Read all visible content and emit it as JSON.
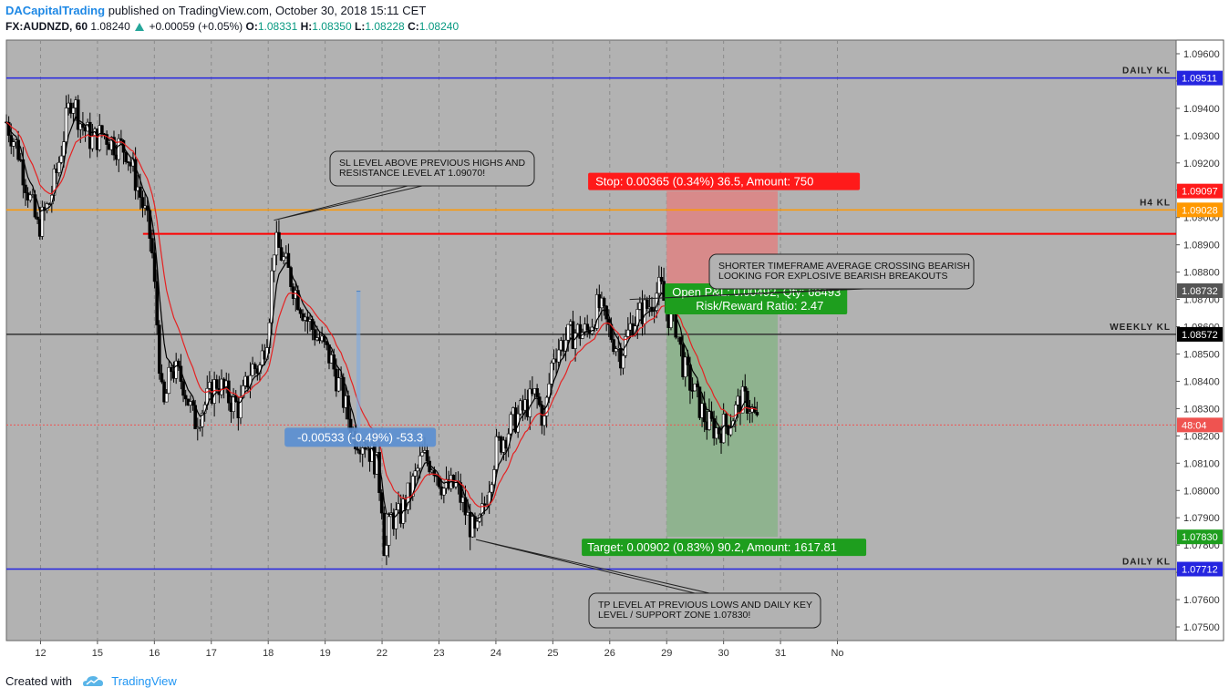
{
  "header": {
    "author": "DACapitalTrading",
    "published": "published on TradingView.com, October 30, 2018 15:11 CET",
    "symbol": "FX:AUDNZD, 60",
    "last": "1.08240",
    "change": "+0.00059 (+0.05%)",
    "o_label": "O:",
    "o": "1.08331",
    "h_label": "H:",
    "h": "1.08350",
    "l_label": "L:",
    "l": "1.08228",
    "c_label": "C:",
    "c": "1.08240"
  },
  "footer": {
    "created": "Created with",
    "brand": "TradingView",
    "logo_icon": "tradingview-cloud-icon"
  },
  "colors": {
    "plot_bg": "#b2b2b2",
    "up_candle": "#ffffff",
    "down_candle": "#000000",
    "ma_fast": "#000000",
    "ma_slow": "#e52222",
    "daily_kl": "#2525e0",
    "h4_kl": "#ff9800",
    "weekly_kl": "#333333",
    "stop_box": "#d88a8a",
    "target_box": "#8fb38f"
  },
  "chart_data": {
    "type": "candlestick",
    "y_axis": {
      "min": 1.0745,
      "max": 1.0965,
      "ticks": [
        "1.07500",
        "1.07600",
        "1.07700",
        "1.07800",
        "1.07900",
        "1.08000",
        "1.08100",
        "1.08200",
        "1.08300",
        "1.08400",
        "1.08500",
        "1.08600",
        "1.08700",
        "1.08800",
        "1.08900",
        "1.09000",
        "1.09100",
        "1.09200",
        "1.09300",
        "1.09400",
        "1.09500",
        "1.09600"
      ]
    },
    "x_axis": {
      "start_day": 11.4,
      "end_day": 31.95,
      "ticks": [
        {
          "label": "12",
          "day": 12
        },
        {
          "label": "15",
          "day": 13
        },
        {
          "label": "16",
          "day": 14
        },
        {
          "label": "17",
          "day": 15
        },
        {
          "label": "18",
          "day": 16
        },
        {
          "label": "19",
          "day": 17
        },
        {
          "label": "22",
          "day": 18
        },
        {
          "label": "23",
          "day": 19
        },
        {
          "label": "24",
          "day": 20
        },
        {
          "label": "25",
          "day": 21
        },
        {
          "label": "26",
          "day": 22
        },
        {
          "label": "29",
          "day": 23
        },
        {
          "label": "30",
          "day": 24
        },
        {
          "label": "31",
          "day": 25
        },
        {
          "label": "No",
          "day": 26
        }
      ]
    },
    "price_path": [
      [
        11.4,
        1.0935
      ],
      [
        11.6,
        1.0925
      ],
      [
        11.75,
        1.0912
      ],
      [
        11.95,
        1.0896
      ],
      [
        12.15,
        1.0905
      ],
      [
        12.3,
        1.0918
      ],
      [
        12.45,
        1.0935
      ],
      [
        12.55,
        1.0945
      ],
      [
        12.7,
        1.0935
      ],
      [
        12.9,
        1.0928
      ],
      [
        13.1,
        1.0931
      ],
      [
        13.3,
        1.0927
      ],
      [
        13.5,
        1.0925
      ],
      [
        13.7,
        1.0912
      ],
      [
        13.85,
        1.09
      ],
      [
        13.95,
        1.089
      ],
      [
        14.05,
        1.086
      ],
      [
        14.15,
        1.0828
      ],
      [
        14.3,
        1.0845
      ],
      [
        14.5,
        1.084
      ],
      [
        14.7,
        1.0825
      ],
      [
        14.9,
        1.0832
      ],
      [
        15.1,
        1.084
      ],
      [
        15.3,
        1.0834
      ],
      [
        15.5,
        1.083
      ],
      [
        15.7,
        1.0845
      ],
      [
        15.85,
        1.0845
      ],
      [
        16.0,
        1.086
      ],
      [
        16.1,
        1.089
      ],
      [
        16.2,
        1.0888
      ],
      [
        16.35,
        1.088
      ],
      [
        16.5,
        1.0872
      ],
      [
        16.7,
        1.0862
      ],
      [
        16.9,
        1.0855
      ],
      [
        17.1,
        1.0848
      ],
      [
        17.3,
        1.0835
      ],
      [
        17.5,
        1.082
      ],
      [
        17.7,
        1.0818
      ],
      [
        17.9,
        1.081
      ],
      [
        18.0,
        1.0795
      ],
      [
        18.05,
        1.0775
      ],
      [
        18.15,
        1.079
      ],
      [
        18.3,
        1.079
      ],
      [
        18.5,
        1.08
      ],
      [
        18.7,
        1.0812
      ],
      [
        18.9,
        1.081
      ],
      [
        19.1,
        1.08
      ],
      [
        19.3,
        1.0802
      ],
      [
        19.5,
        1.079
      ],
      [
        19.65,
        1.0782
      ],
      [
        19.8,
        1.0795
      ],
      [
        20.0,
        1.0815
      ],
      [
        20.15,
        1.082
      ],
      [
        20.3,
        1.0825
      ],
      [
        20.5,
        1.083
      ],
      [
        20.7,
        1.0835
      ],
      [
        20.85,
        1.0825
      ],
      [
        21.0,
        1.085
      ],
      [
        21.2,
        1.0855
      ],
      [
        21.4,
        1.0858
      ],
      [
        21.6,
        1.0858
      ],
      [
        21.8,
        1.0868
      ],
      [
        22.0,
        1.0858
      ],
      [
        22.2,
        1.085
      ],
      [
        22.4,
        1.0862
      ],
      [
        22.55,
        1.0865
      ],
      [
        22.7,
        1.0868
      ],
      [
        22.8,
        1.0872
      ],
      [
        22.9,
        1.0874
      ],
      [
        23.0,
        1.0865
      ],
      [
        23.15,
        1.0862
      ],
      [
        23.3,
        1.0845
      ],
      [
        23.5,
        1.0835
      ],
      [
        23.7,
        1.0825
      ],
      [
        23.9,
        1.0822
      ],
      [
        24.1,
        1.0825
      ],
      [
        24.3,
        1.0833
      ],
      [
        24.45,
        1.0832
      ],
      [
        24.6,
        1.0824
      ]
    ],
    "moving_averages": [
      {
        "name": "",
        "color": "#000000",
        "lag": 0.25
      },
      {
        "name": "",
        "color": "#e52222",
        "lag": 0.65
      }
    ],
    "levels": [
      {
        "label": "DAILY KL",
        "price": 1.09511,
        "price_label": "1.09511",
        "color": "#2525e0"
      },
      {
        "label": "H4 KL",
        "price": 1.09028,
        "price_label": "1.09028",
        "color": "#ff9800"
      },
      {
        "label": "WEEKLY KL",
        "price": 1.08572,
        "price_label": "1.08572",
        "color": "#333333"
      },
      {
        "label": "DAILY KL",
        "price": 1.07712,
        "price_label": "1.07712",
        "color": "#2525e0"
      }
    ],
    "sl_line": {
      "price": 1.0894,
      "from_day": 13.8,
      "color": "#ff0000"
    },
    "position": {
      "entry": 1.08732,
      "entry_label": "1.08732",
      "stop": 1.09097,
      "stop_label": "1.09097",
      "target": 1.0783,
      "target_label": "1.07830",
      "from_day": 23.0,
      "to_day": 24.95,
      "stop_text": "Stop: 0.00365 (0.34%) 36.5, Amount: 750",
      "pnl_text": "Open P&L: 0.00492, Qty: 68493",
      "rr_text": "Risk/Reward Ratio: 2.47",
      "target_text": "Target: 0.00902 (0.83%) 90.2, Amount: 1617.81"
    },
    "measure": {
      "from_day": 17.55,
      "from_price": 1.0873,
      "to_day": 17.62,
      "to_price": 1.082,
      "text": "-0.00533 (-0.49%) -53.3"
    },
    "current_price": {
      "price": 1.0824,
      "countdown": "48:04"
    },
    "annotations": [
      {
        "lines": [
          "SL LEVEL ABOVE PREVIOUS HIGHS AND",
          "RESISTANCE LEVEL AT 1.09070!"
        ],
        "target_day": 16.1,
        "target_price": 1.0899
      },
      {
        "lines": [
          "SHORTER TIMEFRAME AVERAGE CROSSING BEARISH",
          "LOOKING FOR EXPLOSIVE BEARISH BREAKOUTS"
        ],
        "target_day": 22.35,
        "target_price": 1.087
      },
      {
        "lines": [
          "TP LEVEL AT PREVIOUS LOWS AND DAILY KEY",
          "LEVEL / SUPPORT ZONE 1.07830!"
        ],
        "target_day": 19.65,
        "target_price": 1.0782
      }
    ]
  }
}
